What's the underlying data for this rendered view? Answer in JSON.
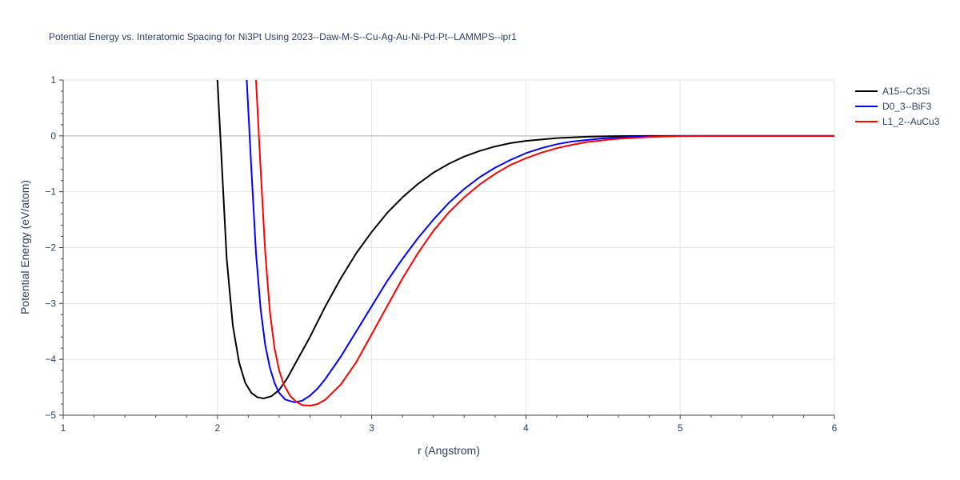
{
  "chart_data": {
    "type": "line",
    "title": "Potential Energy vs. Interatomic Spacing for Ni3Pt Using 2023--Daw-M-S--Cu-Ag-Au-Ni-Pd-Pt--LAMMPS--ipr1",
    "xlabel": "r (Angstrom)",
    "ylabel": "Potential Energy (eV/atom)",
    "xlim": [
      1,
      6
    ],
    "ylim": [
      -5,
      1
    ],
    "xticks": [
      1,
      2,
      3,
      4,
      5,
      6
    ],
    "yticks": [
      1,
      0,
      -1,
      -2,
      -3,
      -4,
      -5
    ],
    "ytick_labels": [
      "1",
      "0",
      "−1",
      "−2",
      "−3",
      "−4",
      "−5"
    ],
    "grid": true,
    "legend_position": "top-right",
    "series": [
      {
        "name": "A15--Cr3Si",
        "color": "#000000",
        "points": [
          [
            2.0,
            1.0
          ],
          [
            2.03,
            -0.6
          ],
          [
            2.06,
            -2.2
          ],
          [
            2.1,
            -3.4
          ],
          [
            2.14,
            -4.05
          ],
          [
            2.18,
            -4.42
          ],
          [
            2.22,
            -4.6
          ],
          [
            2.26,
            -4.68
          ],
          [
            2.3,
            -4.7
          ],
          [
            2.35,
            -4.66
          ],
          [
            2.4,
            -4.55
          ],
          [
            2.45,
            -4.35
          ],
          [
            2.5,
            -4.1
          ],
          [
            2.6,
            -3.6
          ],
          [
            2.7,
            -3.05
          ],
          [
            2.8,
            -2.55
          ],
          [
            2.9,
            -2.1
          ],
          [
            3.0,
            -1.72
          ],
          [
            3.1,
            -1.38
          ],
          [
            3.2,
            -1.1
          ],
          [
            3.3,
            -0.86
          ],
          [
            3.4,
            -0.66
          ],
          [
            3.5,
            -0.5
          ],
          [
            3.6,
            -0.37
          ],
          [
            3.7,
            -0.27
          ],
          [
            3.8,
            -0.19
          ],
          [
            3.9,
            -0.13
          ],
          [
            4.0,
            -0.09
          ],
          [
            4.2,
            -0.04
          ],
          [
            4.4,
            -0.015
          ],
          [
            4.6,
            -0.004
          ],
          [
            4.8,
            0.0
          ],
          [
            5.0,
            0.0
          ],
          [
            6.0,
            0.0
          ]
        ]
      },
      {
        "name": "D0_3--BiF3",
        "color": "#0000ff",
        "points": [
          [
            2.19,
            1.0
          ],
          [
            2.22,
            -0.6
          ],
          [
            2.25,
            -2.1
          ],
          [
            2.28,
            -3.1
          ],
          [
            2.31,
            -3.75
          ],
          [
            2.34,
            -4.15
          ],
          [
            2.37,
            -4.42
          ],
          [
            2.4,
            -4.6
          ],
          [
            2.44,
            -4.72
          ],
          [
            2.5,
            -4.77
          ],
          [
            2.55,
            -4.74
          ],
          [
            2.6,
            -4.65
          ],
          [
            2.65,
            -4.52
          ],
          [
            2.7,
            -4.35
          ],
          [
            2.8,
            -3.95
          ],
          [
            2.9,
            -3.5
          ],
          [
            3.0,
            -3.05
          ],
          [
            3.1,
            -2.6
          ],
          [
            3.2,
            -2.2
          ],
          [
            3.3,
            -1.83
          ],
          [
            3.4,
            -1.5
          ],
          [
            3.5,
            -1.2
          ],
          [
            3.6,
            -0.95
          ],
          [
            3.7,
            -0.74
          ],
          [
            3.8,
            -0.57
          ],
          [
            3.9,
            -0.43
          ],
          [
            4.0,
            -0.31
          ],
          [
            4.1,
            -0.22
          ],
          [
            4.2,
            -0.15
          ],
          [
            4.3,
            -0.1
          ],
          [
            4.5,
            -0.045
          ],
          [
            4.7,
            -0.015
          ],
          [
            4.9,
            -0.003
          ],
          [
            5.0,
            0.0
          ],
          [
            6.0,
            0.0
          ]
        ]
      },
      {
        "name": "L1_2--AuCu3",
        "color": "#ff0000",
        "points": [
          [
            2.25,
            1.0
          ],
          [
            2.28,
            -0.6
          ],
          [
            2.31,
            -2.1
          ],
          [
            2.34,
            -3.15
          ],
          [
            2.37,
            -3.8
          ],
          [
            2.4,
            -4.2
          ],
          [
            2.43,
            -4.45
          ],
          [
            2.47,
            -4.65
          ],
          [
            2.51,
            -4.76
          ],
          [
            2.55,
            -4.82
          ],
          [
            2.6,
            -4.83
          ],
          [
            2.65,
            -4.8
          ],
          [
            2.7,
            -4.72
          ],
          [
            2.8,
            -4.45
          ],
          [
            2.9,
            -4.05
          ],
          [
            3.0,
            -3.55
          ],
          [
            3.1,
            -3.05
          ],
          [
            3.2,
            -2.55
          ],
          [
            3.3,
            -2.1
          ],
          [
            3.4,
            -1.7
          ],
          [
            3.5,
            -1.37
          ],
          [
            3.6,
            -1.1
          ],
          [
            3.7,
            -0.87
          ],
          [
            3.8,
            -0.68
          ],
          [
            3.9,
            -0.52
          ],
          [
            4.0,
            -0.4
          ],
          [
            4.1,
            -0.3
          ],
          [
            4.2,
            -0.22
          ],
          [
            4.3,
            -0.16
          ],
          [
            4.4,
            -0.11
          ],
          [
            4.6,
            -0.05
          ],
          [
            4.8,
            -0.02
          ],
          [
            5.0,
            -0.005
          ],
          [
            5.2,
            0.0
          ],
          [
            6.0,
            0.0
          ]
        ]
      }
    ]
  }
}
